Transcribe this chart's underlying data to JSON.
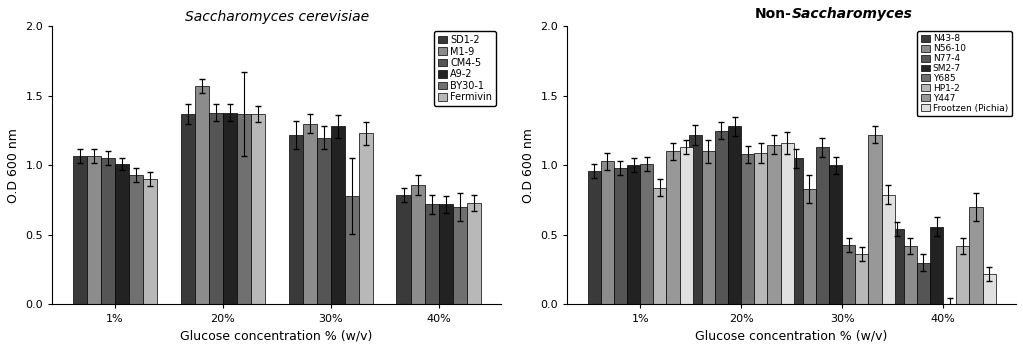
{
  "left_title": "Saccharomyces cerevisiae",
  "xlabel": "Glucose concentration % (w/v)",
  "ylabel": "O.D 600 nm",
  "ylim": [
    0.0,
    2.0
  ],
  "yticks": [
    0.0,
    0.5,
    1.0,
    1.5,
    2.0
  ],
  "categories": [
    "1%",
    "20%",
    "30%",
    "40%"
  ],
  "left_series": {
    "labels": [
      "SD1-2",
      "M1-9",
      "CM4-5",
      "A9-2",
      "BY30-1",
      "Fermivin"
    ],
    "colors": [
      "#3a3a3a",
      "#8c8c8c",
      "#555555",
      "#222222",
      "#707070",
      "#b8b8b8"
    ],
    "values": [
      [
        1.07,
        1.37,
        1.22,
        0.79
      ],
      [
        1.07,
        1.57,
        1.3,
        0.86
      ],
      [
        1.05,
        1.38,
        1.2,
        0.72
      ],
      [
        1.01,
        1.38,
        1.28,
        0.72
      ],
      [
        0.93,
        1.37,
        0.78,
        0.7
      ],
      [
        0.9,
        1.37,
        1.23,
        0.73
      ]
    ],
    "errors": [
      [
        0.05,
        0.07,
        0.1,
        0.05
      ],
      [
        0.05,
        0.05,
        0.07,
        0.07
      ],
      [
        0.05,
        0.06,
        0.08,
        0.07
      ],
      [
        0.04,
        0.06,
        0.08,
        0.06
      ],
      [
        0.05,
        0.3,
        0.27,
        0.1
      ],
      [
        0.05,
        0.06,
        0.08,
        0.06
      ]
    ]
  },
  "right_series": {
    "labels": [
      "N43-8",
      "N56-10",
      "N77-4",
      "SM2-7",
      "Y685",
      "HP1-2",
      "Y447",
      "Frootzen (Pichia)"
    ],
    "colors": [
      "#3a3a3a",
      "#8c8c8c",
      "#555555",
      "#222222",
      "#707070",
      "#b8b8b8",
      "#989898",
      "#e0e0e0"
    ],
    "values": [
      [
        0.96,
        1.22,
        1.05,
        0.54
      ],
      [
        1.03,
        1.1,
        0.83,
        0.42
      ],
      [
        0.98,
        1.25,
        1.13,
        0.3
      ],
      [
        1.0,
        1.28,
        1.0,
        0.56
      ],
      [
        1.01,
        1.08,
        0.43,
        0.0
      ],
      [
        0.84,
        1.09,
        0.36,
        0.42
      ],
      [
        1.1,
        1.15,
        1.22,
        0.7
      ],
      [
        1.13,
        1.16,
        0.79,
        0.22
      ]
    ],
    "errors": [
      [
        0.05,
        0.07,
        0.07,
        0.05
      ],
      [
        0.06,
        0.08,
        0.1,
        0.06
      ],
      [
        0.05,
        0.06,
        0.07,
        0.06
      ],
      [
        0.05,
        0.07,
        0.06,
        0.07
      ],
      [
        0.05,
        0.06,
        0.05,
        0.05
      ],
      [
        0.06,
        0.07,
        0.05,
        0.06
      ],
      [
        0.06,
        0.07,
        0.06,
        0.1
      ],
      [
        0.05,
        0.08,
        0.07,
        0.05
      ]
    ]
  }
}
